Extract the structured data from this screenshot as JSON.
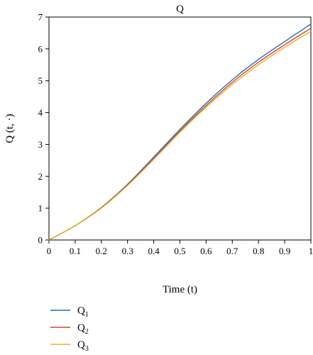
{
  "chart_data": {
    "type": "line",
    "title": "Q",
    "xlabel": "Time (t)",
    "ylabel": "Q (t, ·)",
    "xlim": [
      0,
      1
    ],
    "ylim": [
      0,
      7
    ],
    "xticks": [
      "0",
      "0.1",
      "0.2",
      "0.3",
      "0.4",
      "0.5",
      "0.6",
      "0.7",
      "0.8",
      "0.9",
      "1"
    ],
    "yticks": [
      "0",
      "1",
      "2",
      "3",
      "4",
      "5",
      "6",
      "7"
    ],
    "grid": false,
    "legend_position": "bottom-left",
    "x": [
      0,
      0.1,
      0.2,
      0.3,
      0.4,
      0.5,
      0.6,
      0.7,
      0.8,
      0.9,
      1.0
    ],
    "series": [
      {
        "name": "Q",
        "subscript": "1",
        "color": "#1f6fbd",
        "values": [
          0,
          0.45,
          1.02,
          1.75,
          2.6,
          3.47,
          4.29,
          5.03,
          5.67,
          6.23,
          6.78
        ]
      },
      {
        "name": "Q",
        "subscript": "2",
        "color": "#d6452a",
        "values": [
          0,
          0.45,
          1.01,
          1.73,
          2.56,
          3.42,
          4.22,
          4.95,
          5.58,
          6.13,
          6.65
        ]
      },
      {
        "name": "Q",
        "subscript": "3",
        "color": "#e8b321",
        "values": [
          0,
          0.45,
          1.0,
          1.71,
          2.53,
          3.38,
          4.17,
          4.88,
          5.5,
          6.05,
          6.55
        ]
      }
    ]
  }
}
